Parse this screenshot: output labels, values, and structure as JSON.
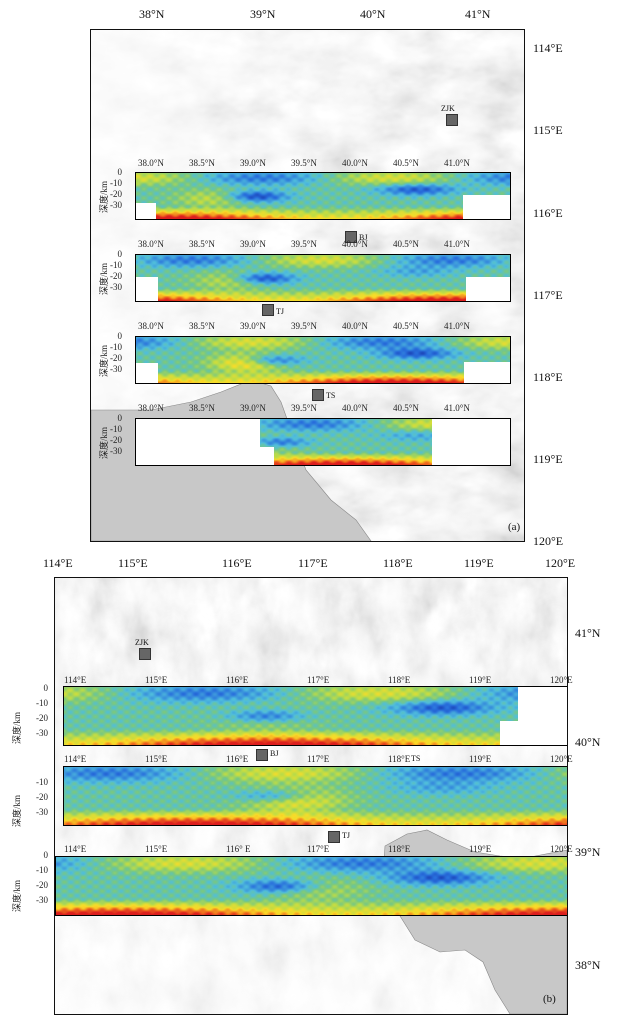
{
  "panel_a": {
    "label": "(a)",
    "lat_ticks": [
      "38°N",
      "39°N",
      "40°N",
      "41°N"
    ],
    "lon_ticks": [
      "114°E",
      "115°E",
      "116°E",
      "117°E",
      "118°E",
      "119°E",
      "120°E"
    ],
    "sections": [
      {
        "ticks": [
          "38.0°N",
          "38.5°N",
          "39.0°N",
          "39.5°N",
          "40.0°N",
          "40.5°N",
          "41.0°N"
        ],
        "depth_ticks": [
          "0",
          "-10",
          "-20",
          "-30"
        ],
        "ylabel": "深度/km"
      },
      {
        "ticks": [
          "38.0°N",
          "38.5°N",
          "39.0°N",
          "39.5°N",
          "40.0°N",
          "40.5°N",
          "41.0°N"
        ],
        "depth_ticks": [
          "0",
          "-10",
          "-20",
          "-30"
        ],
        "ylabel": "深度/km"
      },
      {
        "ticks": [
          "38.0°N",
          "38.5°N",
          "39.0°N",
          "39.5°N",
          "40.0°N",
          "40.5°N",
          "41.0°N"
        ],
        "depth_ticks": [
          "0",
          "-10",
          "-20",
          "-30"
        ],
        "ylabel": "深度/km"
      },
      {
        "ticks": [
          "38.0°N",
          "38.5°N",
          "39.0°N",
          "39.5°N",
          "40.0°N",
          "40.5°N",
          "41.0°N"
        ],
        "depth_ticks": [
          "0",
          "-10",
          "-20",
          "-30"
        ],
        "ylabel": "深度/km"
      }
    ],
    "stations": [
      "ZJK",
      "BJ",
      "TJ",
      "TS"
    ]
  },
  "panel_b": {
    "label": "(b)",
    "lon_ticks": [
      "114°E",
      "115°E",
      "116°E",
      "117°E",
      "118°E",
      "119°E",
      "120°E"
    ],
    "lat_ticks": [
      "41°N",
      "40°N",
      "39°N",
      "38°N"
    ],
    "sections": [
      {
        "ticks": [
          "114°E",
          "115°E",
          "116°E",
          "117°E",
          "118°E",
          "119°E",
          "120°E"
        ],
        "depth_ticks": [
          "0",
          "-10",
          "-20",
          "-30"
        ],
        "ylabel": "深度/km"
      },
      {
        "ticks": [
          "114°E",
          "115°E",
          "116°E",
          "117°E",
          "118°E",
          "119°E",
          "120°E"
        ],
        "depth_ticks": [
          "-10",
          "-20",
          "-30"
        ],
        "ylabel": "深度/km"
      },
      {
        "ticks": [
          "114°E",
          "115°E",
          "116° E",
          "117°E",
          "118°E",
          "119°E",
          "120°E"
        ],
        "depth_ticks": [
          "0",
          "-10",
          "-20",
          "-30"
        ],
        "ylabel": "深度/km"
      }
    ],
    "stations": [
      "ZJK",
      "BJ",
      "TS",
      "TJ"
    ]
  }
}
